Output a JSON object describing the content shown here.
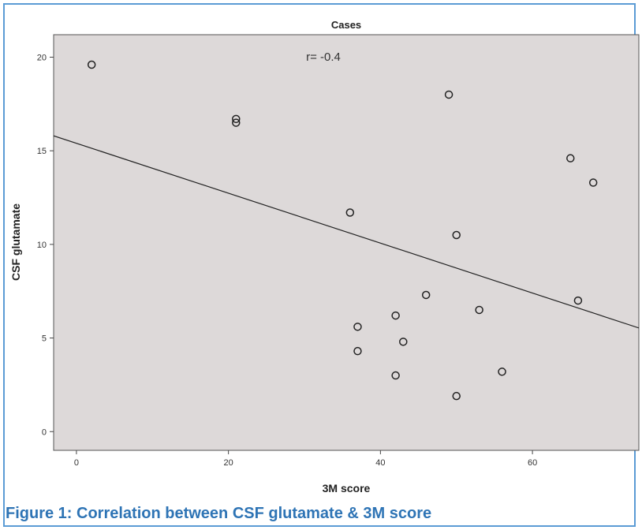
{
  "caption": "Figure 1: Correlation between CSF glutamate & 3M score",
  "colors": {
    "frame_border": "#5b9bd5",
    "caption": "#2e74b5",
    "plot_background": "#ddd9d9",
    "point_stroke": "#222222",
    "fit_line": "#222222"
  },
  "chart_data": {
    "type": "scatter",
    "title": "Cases",
    "xlabel": "3M score",
    "ylabel": "CSF glutamate",
    "annotation": "r= -0.4",
    "xlim": [
      -3,
      74
    ],
    "ylim": [
      -1,
      21.2
    ],
    "xticks": [
      0,
      20,
      40,
      60
    ],
    "yticks": [
      0,
      5,
      10,
      15,
      20
    ],
    "grid": false,
    "points": [
      {
        "x": 2,
        "y": 19.6
      },
      {
        "x": 21,
        "y": 16.7
      },
      {
        "x": 21,
        "y": 16.5
      },
      {
        "x": 36,
        "y": 11.7
      },
      {
        "x": 37,
        "y": 5.6
      },
      {
        "x": 37,
        "y": 4.3
      },
      {
        "x": 42,
        "y": 6.2
      },
      {
        "x": 42,
        "y": 3.0
      },
      {
        "x": 43,
        "y": 4.8
      },
      {
        "x": 46,
        "y": 7.3
      },
      {
        "x": 49,
        "y": 18.0
      },
      {
        "x": 50,
        "y": 10.5
      },
      {
        "x": 50,
        "y": 1.9
      },
      {
        "x": 53,
        "y": 6.5
      },
      {
        "x": 56,
        "y": 3.2
      },
      {
        "x": 65,
        "y": 14.6
      },
      {
        "x": 66,
        "y": 7.0
      },
      {
        "x": 68,
        "y": 13.3
      }
    ],
    "fit_line": {
      "slope": -0.1333,
      "intercept": 15.4
    }
  }
}
